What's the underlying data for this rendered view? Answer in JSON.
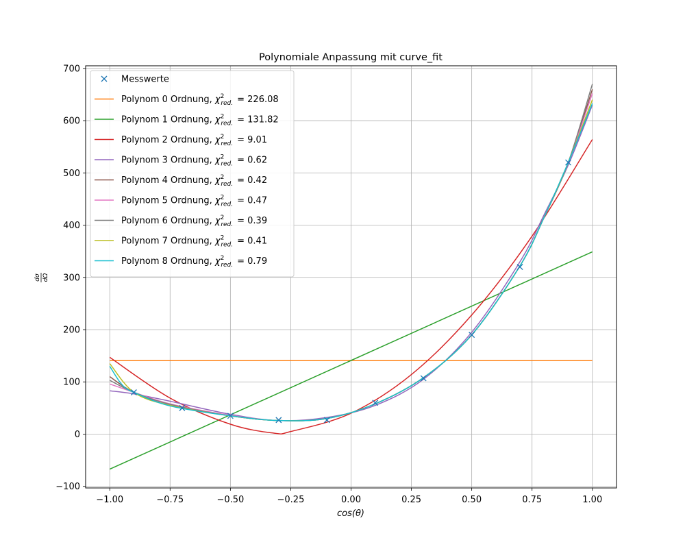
{
  "chart_data": {
    "type": "line",
    "title": "Polynomiale Anpassung mit curve_fit",
    "xlabel": "cos(θ)",
    "ylabel": "dσ/dΩ",
    "ylabel_num": "dσ",
    "ylabel_den": "dΩ",
    "xlim": [
      -1.1,
      1.1
    ],
    "ylim": [
      -103,
      705
    ],
    "xticks": [
      -1.0,
      -0.75,
      -0.5,
      -0.25,
      0.0,
      0.25,
      0.5,
      0.75,
      1.0
    ],
    "xtick_labels": [
      "−1.00",
      "−0.75",
      "−0.50",
      "−0.25",
      "0.00",
      "0.25",
      "0.50",
      "0.75",
      "1.00"
    ],
    "yticks": [
      -100,
      0,
      100,
      200,
      300,
      400,
      500,
      600,
      700
    ],
    "ytick_labels": [
      "−100",
      "0",
      "100",
      "200",
      "300",
      "400",
      "500",
      "600",
      "700"
    ],
    "grid": true,
    "legend_position": "upper-left",
    "measurements": {
      "name": "Messwerte",
      "color": "#1f77b4",
      "marker": "x",
      "x": [
        -0.9,
        -0.7,
        -0.5,
        -0.3,
        -0.1,
        0.1,
        0.3,
        0.5,
        0.7,
        0.9
      ],
      "y": [
        80,
        50,
        35,
        27,
        27,
        60,
        107,
        190,
        320,
        520
      ]
    },
    "series": [
      {
        "name": "Polynom 0 Ordnung",
        "chi_label": "= 226.08",
        "color": "#ff7f0e",
        "x": [
          -1.0,
          1.0
        ],
        "y": [
          141,
          141
        ]
      },
      {
        "name": "Polynom 1 Ordnung",
        "chi_label": "= 131.82",
        "color": "#2ca02c",
        "x": [
          -1.0,
          1.0
        ],
        "y": [
          -67,
          349
        ]
      },
      {
        "name": "Polynom 2 Ordnung",
        "chi_label": "= 9.01",
        "color": "#d62728",
        "x": [
          -1.0,
          -0.75,
          -0.5,
          -0.32,
          -0.25,
          0.0,
          0.25,
          0.5,
          0.75,
          1.0
        ],
        "y": [
          147,
          69,
          19,
          2,
          5,
          40,
          114,
          228,
          379,
          564
        ]
      },
      {
        "name": "Polynom 3 Ordnung",
        "chi_label": "= 0.62",
        "color": "#9467bd",
        "x": [
          -1.0,
          -0.9,
          -0.75,
          -0.5,
          -0.3,
          -0.1,
          0.1,
          0.3,
          0.5,
          0.7,
          0.8,
          0.9,
          1.0
        ],
        "y": [
          83,
          77,
          63,
          38,
          26,
          32,
          55,
          105,
          195,
          330,
          420,
          515,
          630
        ]
      },
      {
        "name": "Polynom 4 Ordnung",
        "chi_label": "= 0.42",
        "color": "#8c564b",
        "x": [
          -1.0,
          -0.9,
          -0.75,
          -0.5,
          -0.3,
          -0.1,
          0.1,
          0.3,
          0.5,
          0.7,
          0.8,
          0.9,
          1.0
        ],
        "y": [
          110,
          80,
          57,
          35,
          26,
          30,
          58,
          108,
          190,
          322,
          415,
          520,
          660
        ]
      },
      {
        "name": "Polynom 5 Ordnung",
        "chi_label": "= 0.47",
        "color": "#e377c2",
        "x": [
          -1.0,
          -0.9,
          -0.75,
          -0.5,
          -0.3,
          -0.1,
          0.1,
          0.3,
          0.5,
          0.7,
          0.8,
          0.9,
          1.0
        ],
        "y": [
          96,
          80,
          58,
          36,
          26,
          30,
          58,
          108,
          190,
          322,
          415,
          520,
          652
        ]
      },
      {
        "name": "Polynom 6 Ordnung",
        "chi_label": "= 0.39",
        "color": "#7f7f7f",
        "x": [
          -1.0,
          -0.9,
          -0.75,
          -0.5,
          -0.3,
          -0.1,
          0.1,
          0.3,
          0.5,
          0.7,
          0.8,
          0.9,
          1.0
        ],
        "y": [
          103,
          80,
          57,
          35,
          26,
          30,
          58,
          108,
          190,
          322,
          415,
          520,
          670
        ]
      },
      {
        "name": "Polynom 7 Ordnung",
        "chi_label": "= 0.41",
        "color": "#bcbd22",
        "x": [
          -1.0,
          -0.9,
          -0.75,
          -0.5,
          -0.3,
          -0.1,
          0.1,
          0.3,
          0.5,
          0.7,
          0.8,
          0.9,
          1.0
        ],
        "y": [
          135,
          80,
          55,
          35,
          26,
          30,
          58,
          108,
          190,
          322,
          415,
          520,
          640
        ]
      },
      {
        "name": "Polynom 8 Ordnung",
        "chi_label": "= 0.79",
        "color": "#17becf",
        "x": [
          -1.0,
          -0.95,
          -0.9,
          -0.75,
          -0.5,
          -0.3,
          -0.1,
          0.1,
          0.3,
          0.5,
          0.7,
          0.8,
          0.9,
          1.0
        ],
        "y": [
          130,
          95,
          80,
          54,
          35,
          26,
          30,
          58,
          108,
          190,
          322,
          415,
          520,
          633
        ]
      }
    ]
  }
}
